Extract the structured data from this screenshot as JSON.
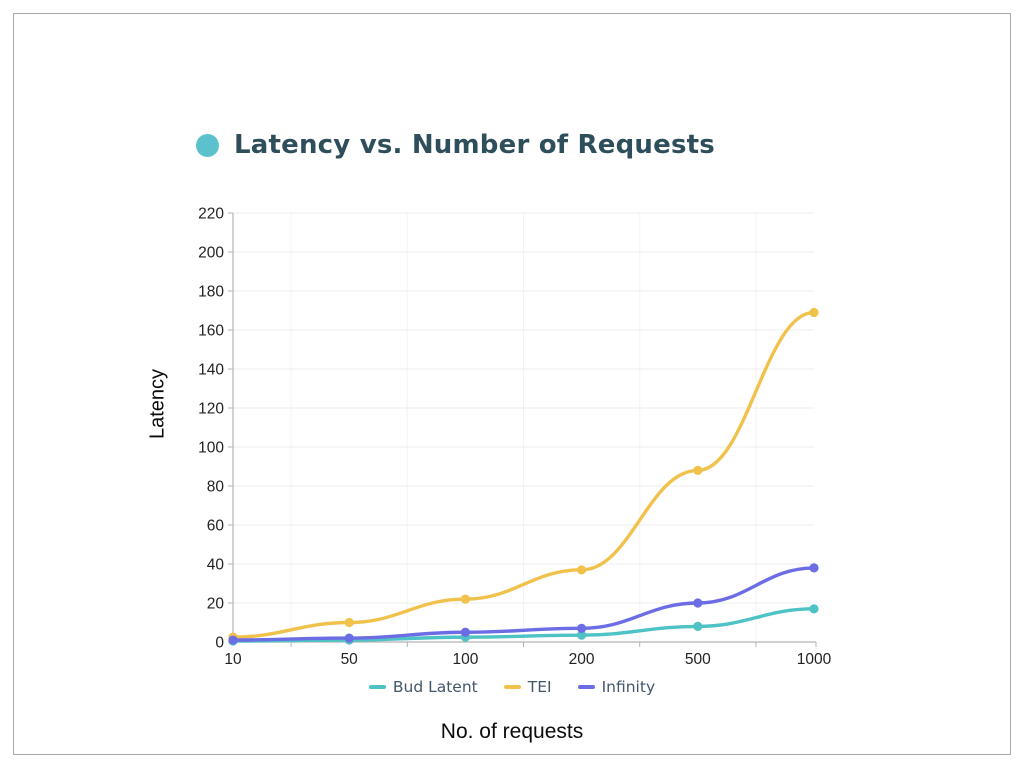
{
  "page": {
    "background": "#ffffff",
    "frame_border_color": "#a9a9a9"
  },
  "header": {
    "bullet_color": "#5bc2cd",
    "title_color": "#2d4e5a"
  },
  "chart_data": {
    "type": "line",
    "title": "Latency vs. Number of Requests",
    "xlabel": "No. of requests",
    "ylabel": "Latency",
    "categories": [
      "10",
      "50",
      "100",
      "200",
      "500",
      "1000"
    ],
    "ylim": [
      0,
      220
    ],
    "ytick_step": 20,
    "grid": true,
    "smooth": true,
    "legend_position": "bottom",
    "series": [
      {
        "name": "Bud Latent",
        "color": "#4fc2c6",
        "values": [
          0.5,
          1,
          2.5,
          3.5,
          8,
          17
        ]
      },
      {
        "name": "TEI",
        "color": "#f0c24b",
        "values": [
          2.5,
          10,
          22,
          37,
          88,
          169
        ]
      },
      {
        "name": "Infinity",
        "color": "#6c6ce5",
        "values": [
          1,
          2,
          5,
          7,
          20,
          38
        ]
      }
    ],
    "style": {
      "grid_color_h": "#ececec",
      "grid_color_v": "#f3f3f3",
      "axis_color": "#b3b3b3",
      "tick_text_color": "#222222",
      "tick_font_size": 15.5
    }
  }
}
